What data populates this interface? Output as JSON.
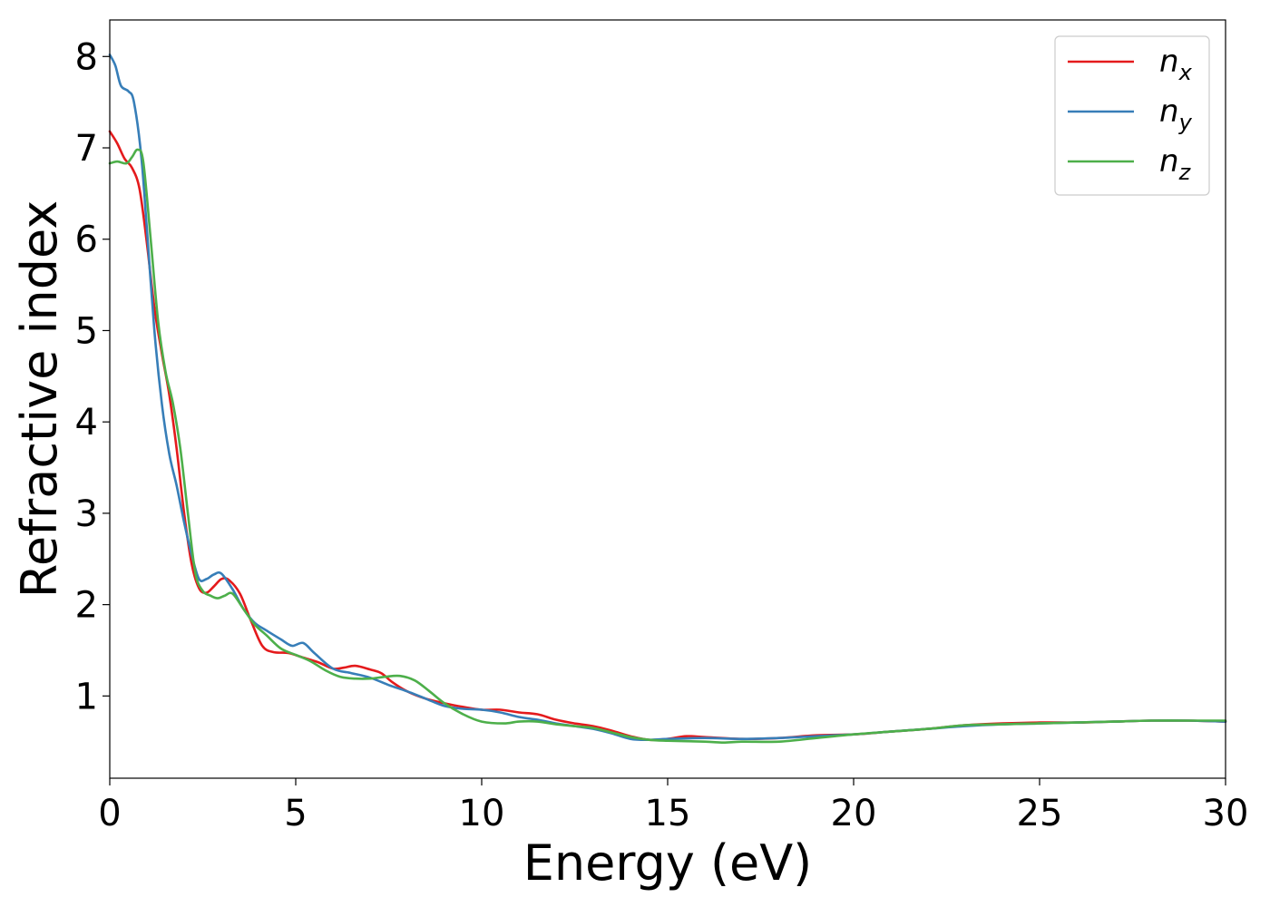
{
  "chart_data": {
    "type": "line",
    "xlabel": "Energy (eV)",
    "ylabel": "Refractive index",
    "xlim": [
      0,
      30
    ],
    "ylim": [
      0.1,
      8.4
    ],
    "xticks": [
      0,
      5,
      10,
      15,
      20,
      25,
      30
    ],
    "yticks": [
      1,
      2,
      3,
      4,
      5,
      6,
      7,
      8
    ],
    "grid": false,
    "legend_position": "top-right",
    "series": [
      {
        "name": "n",
        "subscript": "x",
        "color": "#e41a1c",
        "points": [
          [
            0,
            7.18
          ],
          [
            0.2,
            7.05
          ],
          [
            0.4,
            6.88
          ],
          [
            0.6,
            6.78
          ],
          [
            0.8,
            6.55
          ],
          [
            1.0,
            5.95
          ],
          [
            1.2,
            5.25
          ],
          [
            1.4,
            4.75
          ],
          [
            1.6,
            4.3
          ],
          [
            1.8,
            3.7
          ],
          [
            2.0,
            3.0
          ],
          [
            2.2,
            2.45
          ],
          [
            2.4,
            2.18
          ],
          [
            2.6,
            2.13
          ],
          [
            2.8,
            2.2
          ],
          [
            3.0,
            2.28
          ],
          [
            3.2,
            2.27
          ],
          [
            3.5,
            2.12
          ],
          [
            3.8,
            1.82
          ],
          [
            4.1,
            1.55
          ],
          [
            4.4,
            1.48
          ],
          [
            4.8,
            1.47
          ],
          [
            5.2,
            1.42
          ],
          [
            5.6,
            1.37
          ],
          [
            6.0,
            1.3
          ],
          [
            6.3,
            1.31
          ],
          [
            6.6,
            1.33
          ],
          [
            7.0,
            1.29
          ],
          [
            7.3,
            1.25
          ],
          [
            7.6,
            1.15
          ],
          [
            8.0,
            1.05
          ],
          [
            8.5,
            0.97
          ],
          [
            9.0,
            0.92
          ],
          [
            9.5,
            0.88
          ],
          [
            10.0,
            0.85
          ],
          [
            10.5,
            0.85
          ],
          [
            11.0,
            0.82
          ],
          [
            11.5,
            0.8
          ],
          [
            12.0,
            0.74
          ],
          [
            12.5,
            0.7
          ],
          [
            13.0,
            0.67
          ],
          [
            13.5,
            0.62
          ],
          [
            14.0,
            0.56
          ],
          [
            14.5,
            0.52
          ],
          [
            15.0,
            0.53
          ],
          [
            15.5,
            0.56
          ],
          [
            16.0,
            0.55
          ],
          [
            17.0,
            0.53
          ],
          [
            18.0,
            0.54
          ],
          [
            19.0,
            0.57
          ],
          [
            20.0,
            0.58
          ],
          [
            21.0,
            0.61
          ],
          [
            22.0,
            0.64
          ],
          [
            23.0,
            0.68
          ],
          [
            24.0,
            0.7
          ],
          [
            25.0,
            0.71
          ],
          [
            26.0,
            0.71
          ],
          [
            27.0,
            0.72
          ],
          [
            28.0,
            0.73
          ],
          [
            29.0,
            0.73
          ],
          [
            30.0,
            0.72
          ]
        ]
      },
      {
        "name": "n",
        "subscript": "y",
        "color": "#377eb8",
        "points": [
          [
            0,
            8.02
          ],
          [
            0.15,
            7.9
          ],
          [
            0.3,
            7.68
          ],
          [
            0.5,
            7.62
          ],
          [
            0.65,
            7.5
          ],
          [
            0.85,
            6.9
          ],
          [
            1.0,
            6.1
          ],
          [
            1.2,
            5.0
          ],
          [
            1.4,
            4.2
          ],
          [
            1.6,
            3.65
          ],
          [
            1.8,
            3.3
          ],
          [
            2.0,
            2.9
          ],
          [
            2.2,
            2.55
          ],
          [
            2.4,
            2.28
          ],
          [
            2.6,
            2.28
          ],
          [
            2.8,
            2.33
          ],
          [
            3.0,
            2.34
          ],
          [
            3.3,
            2.17
          ],
          [
            3.6,
            1.95
          ],
          [
            3.9,
            1.8
          ],
          [
            4.2,
            1.72
          ],
          [
            4.6,
            1.62
          ],
          [
            4.9,
            1.55
          ],
          [
            5.2,
            1.58
          ],
          [
            5.5,
            1.47
          ],
          [
            6.0,
            1.3
          ],
          [
            6.5,
            1.25
          ],
          [
            7.0,
            1.2
          ],
          [
            7.5,
            1.12
          ],
          [
            8.0,
            1.05
          ],
          [
            8.5,
            0.97
          ],
          [
            9.0,
            0.89
          ],
          [
            9.5,
            0.86
          ],
          [
            10.0,
            0.85
          ],
          [
            10.5,
            0.82
          ],
          [
            11.0,
            0.77
          ],
          [
            11.5,
            0.74
          ],
          [
            12.0,
            0.7
          ],
          [
            12.5,
            0.67
          ],
          [
            13.0,
            0.64
          ],
          [
            13.5,
            0.59
          ],
          [
            14.0,
            0.53
          ],
          [
            14.5,
            0.52
          ],
          [
            15.0,
            0.53
          ],
          [
            16.0,
            0.54
          ],
          [
            17.0,
            0.53
          ],
          [
            18.0,
            0.54
          ],
          [
            19.0,
            0.56
          ],
          [
            20.0,
            0.58
          ],
          [
            21.0,
            0.61
          ],
          [
            22.0,
            0.64
          ],
          [
            23.0,
            0.67
          ],
          [
            24.0,
            0.69
          ],
          [
            25.0,
            0.7
          ],
          [
            26.0,
            0.71
          ],
          [
            27.0,
            0.72
          ],
          [
            28.0,
            0.73
          ],
          [
            29.0,
            0.73
          ],
          [
            30.0,
            0.72
          ]
        ]
      },
      {
        "name": "n",
        "subscript": "z",
        "color": "#4daf4a",
        "points": [
          [
            0,
            6.83
          ],
          [
            0.2,
            6.85
          ],
          [
            0.45,
            6.83
          ],
          [
            0.6,
            6.9
          ],
          [
            0.75,
            6.98
          ],
          [
            0.9,
            6.85
          ],
          [
            1.1,
            6.0
          ],
          [
            1.3,
            5.1
          ],
          [
            1.5,
            4.55
          ],
          [
            1.7,
            4.2
          ],
          [
            1.9,
            3.7
          ],
          [
            2.1,
            3.0
          ],
          [
            2.3,
            2.35
          ],
          [
            2.5,
            2.15
          ],
          [
            2.7,
            2.1
          ],
          [
            2.9,
            2.07
          ],
          [
            3.1,
            2.1
          ],
          [
            3.3,
            2.12
          ],
          [
            3.6,
            1.95
          ],
          [
            3.9,
            1.78
          ],
          [
            4.2,
            1.67
          ],
          [
            4.6,
            1.52
          ],
          [
            5.0,
            1.45
          ],
          [
            5.4,
            1.38
          ],
          [
            5.8,
            1.28
          ],
          [
            6.2,
            1.21
          ],
          [
            6.6,
            1.19
          ],
          [
            7.0,
            1.19
          ],
          [
            7.4,
            1.21
          ],
          [
            7.8,
            1.22
          ],
          [
            8.2,
            1.17
          ],
          [
            8.6,
            1.05
          ],
          [
            9.0,
            0.92
          ],
          [
            9.5,
            0.8
          ],
          [
            10.0,
            0.72
          ],
          [
            10.6,
            0.7
          ],
          [
            11.0,
            0.72
          ],
          [
            11.5,
            0.72
          ],
          [
            12.0,
            0.69
          ],
          [
            12.5,
            0.67
          ],
          [
            13.0,
            0.65
          ],
          [
            13.5,
            0.6
          ],
          [
            14.0,
            0.55
          ],
          [
            14.5,
            0.52
          ],
          [
            15.0,
            0.51
          ],
          [
            16.0,
            0.5
          ],
          [
            16.5,
            0.49
          ],
          [
            17.0,
            0.5
          ],
          [
            18.0,
            0.5
          ],
          [
            19.0,
            0.54
          ],
          [
            20.0,
            0.58
          ],
          [
            21.0,
            0.61
          ],
          [
            22.0,
            0.64
          ],
          [
            23.0,
            0.68
          ],
          [
            24.0,
            0.69
          ],
          [
            25.0,
            0.7
          ],
          [
            26.0,
            0.71
          ],
          [
            27.0,
            0.72
          ],
          [
            28.0,
            0.73
          ],
          [
            29.0,
            0.73
          ],
          [
            30.0,
            0.73
          ]
        ]
      }
    ]
  }
}
